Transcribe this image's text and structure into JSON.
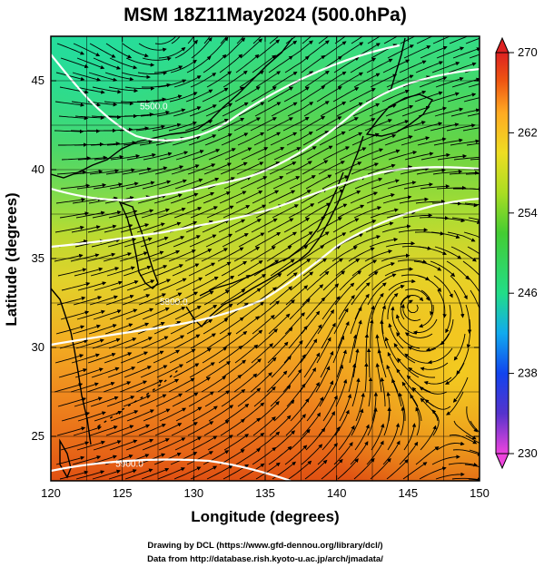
{
  "title": "MSM 18Z11May2024 (500.0hPa)",
  "x_axis": {
    "label": "Longitude (degrees)",
    "range": [
      120,
      150
    ],
    "ticks": [
      "120",
      "125",
      "130",
      "135",
      "140",
      "145",
      "150"
    ]
  },
  "y_axis": {
    "label": "Latitude  (degrees)",
    "range": [
      22.5,
      47.5
    ],
    "ticks": [
      "25",
      "30",
      "35",
      "40",
      "45"
    ]
  },
  "colorbar": {
    "range": [
      230,
      270
    ],
    "ticks": [
      "230",
      "238",
      "246",
      "254",
      "262",
      "270"
    ],
    "stops": [
      "#ee44dd",
      "#5533cc",
      "#1144ee",
      "#11aaee",
      "#22dd88",
      "#44cc33",
      "#aadd22",
      "#eedd22",
      "#ffaa22",
      "#ee5511",
      "#dd2222"
    ]
  },
  "contours": [
    {
      "label": "5500.0",
      "label_lon": 127.2,
      "label_lat": 43.4
    },
    {
      "label": "5800.0",
      "label_lon": 128.6,
      "label_lat": 32.4
    },
    {
      "label": "5900.0",
      "label_lon": 125.5,
      "label_lat": 23.3
    }
  ],
  "features": {
    "cyclone_center": {
      "lon": 145.2,
      "lat": 32.6
    },
    "upper_low_nw": {
      "lon": 127.8,
      "lat": 47.5
    }
  },
  "credit": {
    "line1": "Drawing by DCL (https://www.gfd-dennou.org/library/dcl/)",
    "line2": "Data from http://database.rish.kyoto-u.ac.jp/arch/jmadata/"
  }
}
